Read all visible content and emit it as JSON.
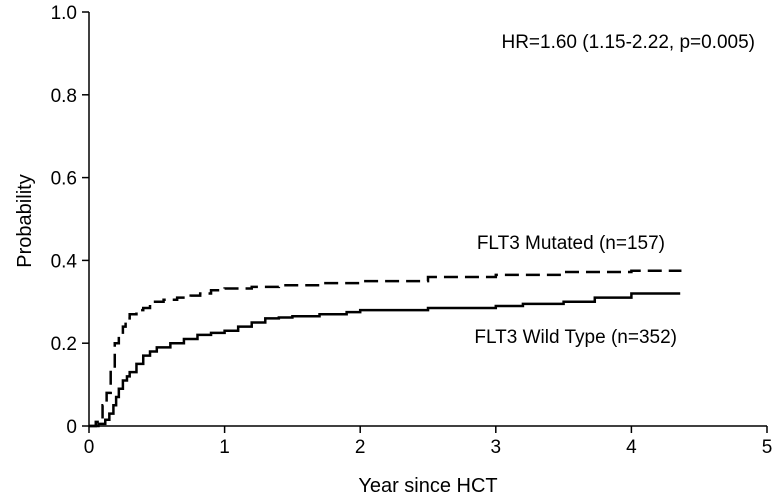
{
  "chart_data": {
    "type": "line",
    "xlabel": "Year since HCT",
    "ylabel": "Probability",
    "xlim": [
      0,
      5
    ],
    "ylim": [
      0,
      1.0
    ],
    "x_ticks": [
      0,
      1,
      2,
      3,
      4,
      5
    ],
    "x_tick_labels": [
      "0",
      "1",
      "2",
      "3",
      "4",
      "5"
    ],
    "y_ticks": [
      0,
      0.2,
      0.4,
      0.6,
      0.8,
      1.0
    ],
    "y_tick_labels": [
      "0",
      "0.2",
      "0.4",
      "0.6",
      "0.8",
      "1.0"
    ],
    "grid": false,
    "annotations": [
      {
        "text": "HR=1.60 (1.15-2.22, p=0.005)"
      }
    ],
    "series": [
      {
        "name": "FLT3 Mutated (n=157)",
        "style": "dashed",
        "color": "#000000",
        "x": [
          0,
          0.05,
          0.1,
          0.13,
          0.16,
          0.19,
          0.22,
          0.25,
          0.27,
          0.3,
          0.35,
          0.4,
          0.45,
          0.55,
          0.65,
          0.75,
          0.82,
          0.9,
          1.0,
          1.2,
          1.4,
          1.7,
          2.0,
          2.5,
          3.0,
          3.5,
          4.0,
          4.36
        ],
        "y": [
          0,
          0.01,
          0.05,
          0.08,
          0.14,
          0.2,
          0.22,
          0.24,
          0.26,
          0.27,
          0.28,
          0.285,
          0.3,
          0.305,
          0.31,
          0.315,
          0.32,
          0.328,
          0.332,
          0.336,
          0.34,
          0.345,
          0.35,
          0.36,
          0.365,
          0.372,
          0.375,
          0.378
        ]
      },
      {
        "name": "FLT3 Wild Type (n=352)",
        "style": "solid",
        "color": "#000000",
        "x": [
          0,
          0.07,
          0.12,
          0.15,
          0.18,
          0.2,
          0.22,
          0.25,
          0.28,
          0.3,
          0.35,
          0.4,
          0.45,
          0.5,
          0.6,
          0.7,
          0.8,
          0.9,
          1.0,
          1.1,
          1.2,
          1.3,
          1.4,
          1.5,
          1.7,
          1.9,
          2.0,
          2.5,
          3.0,
          3.2,
          3.5,
          3.73,
          4.0,
          4.36
        ],
        "y": [
          0,
          0.005,
          0.015,
          0.03,
          0.05,
          0.07,
          0.09,
          0.11,
          0.12,
          0.13,
          0.15,
          0.17,
          0.18,
          0.19,
          0.2,
          0.21,
          0.22,
          0.225,
          0.23,
          0.24,
          0.25,
          0.26,
          0.262,
          0.265,
          0.27,
          0.275,
          0.28,
          0.285,
          0.29,
          0.295,
          0.3,
          0.31,
          0.32,
          0.32
        ]
      }
    ]
  }
}
